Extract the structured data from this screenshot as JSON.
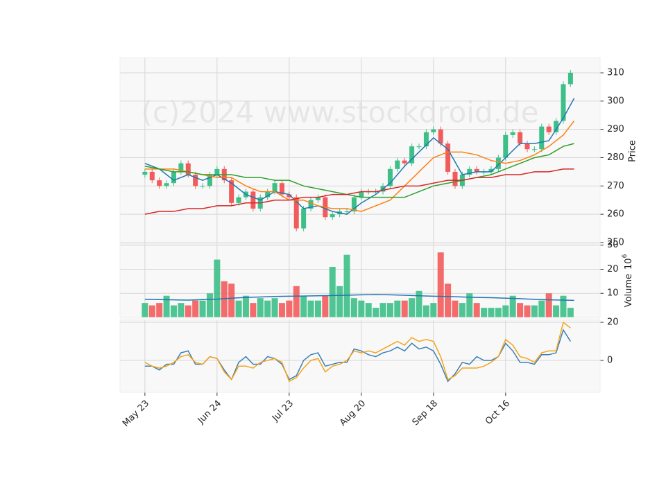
{
  "chart_data": [
    {
      "type": "candlestick",
      "watermark": "(c)2024 www.stockdroid.de",
      "ylabel": "Price",
      "up_color": "#3dbf88",
      "down_color": "#f25b5b",
      "x": [
        0,
        2,
        4,
        6,
        8,
        10,
        12,
        14,
        16,
        18,
        20,
        22,
        24,
        26,
        28,
        30,
        32,
        34,
        36,
        38,
        40,
        42,
        44,
        46,
        48,
        50,
        52,
        54,
        56,
        58,
        60,
        62,
        64,
        66,
        68,
        70,
        72,
        74,
        76,
        78,
        80,
        82,
        84,
        86,
        88,
        90,
        92,
        94,
        96,
        98,
        100,
        102,
        104,
        106,
        108,
        110,
        112,
        114,
        116,
        118
      ],
      "open": [
        274,
        275,
        272,
        270,
        271,
        275,
        278,
        274,
        270,
        270,
        274,
        276,
        272,
        264,
        266,
        268,
        262,
        266,
        268,
        271,
        267,
        266,
        255,
        262,
        265,
        266,
        259,
        260,
        261,
        261,
        266,
        268,
        268,
        268,
        270,
        276,
        279,
        278,
        284,
        284,
        289,
        290,
        285,
        275,
        270,
        274,
        276,
        275,
        275,
        276,
        280,
        288,
        289,
        285,
        283,
        283,
        291,
        289,
        293,
        306
      ],
      "high": [
        276,
        276,
        273,
        272,
        276,
        279,
        279,
        275,
        271,
        275,
        277,
        277,
        273,
        267,
        269,
        269,
        267,
        269,
        272,
        272,
        268,
        267,
        263,
        266,
        267,
        267,
        261,
        262,
        262,
        267,
        269,
        269,
        269,
        271,
        277,
        280,
        280,
        285,
        285,
        290,
        291,
        291,
        286,
        276,
        275,
        277,
        277,
        276,
        277,
        281,
        289,
        290,
        290,
        286,
        284,
        292,
        292,
        294,
        307,
        311
      ],
      "low": [
        273,
        271,
        269,
        269,
        270,
        274,
        273,
        269,
        269,
        269,
        273,
        271,
        263,
        263,
        265,
        261,
        261,
        265,
        267,
        266,
        265,
        254,
        254,
        261,
        264,
        258,
        258,
        259,
        260,
        260,
        265,
        267,
        267,
        267,
        269,
        275,
        277,
        277,
        283,
        283,
        288,
        284,
        274,
        269,
        269,
        273,
        274,
        274,
        274,
        275,
        279,
        287,
        284,
        282,
        282,
        282,
        288,
        288,
        292,
        305
      ],
      "close": [
        275,
        272,
        270,
        271,
        275,
        278,
        274,
        270,
        270,
        274,
        276,
        272,
        264,
        266,
        268,
        262,
        266,
        268,
        271,
        267,
        266,
        255,
        262,
        265,
        266,
        259,
        260,
        261,
        261,
        266,
        268,
        268,
        268,
        270,
        276,
        279,
        278,
        284,
        284,
        289,
        290,
        285,
        275,
        270,
        274,
        276,
        275,
        275,
        276,
        280,
        288,
        289,
        285,
        283,
        283,
        291,
        289,
        293,
        306,
        310
      ],
      "line_x": [
        0,
        4,
        8,
        12,
        16,
        20,
        24,
        28,
        32,
        36,
        40,
        44,
        48,
        52,
        56,
        60,
        64,
        68,
        72,
        76,
        80,
        84,
        88,
        92,
        96,
        100,
        104,
        108,
        112,
        116,
        119
      ],
      "overlays": [
        {
          "color": "#1f77b4",
          "values": [
            278,
            276,
            272,
            274,
            272,
            274,
            271,
            267,
            265,
            268,
            267,
            262,
            263,
            261,
            260,
            264,
            267,
            271,
            277,
            282,
            287,
            283,
            274,
            275,
            275,
            280,
            285,
            285,
            286,
            294,
            301
          ]
        },
        {
          "color": "#ff7f0e",
          "values": [
            276,
            276,
            276,
            275,
            274,
            273,
            273,
            270,
            268,
            268,
            265,
            265,
            263,
            262,
            262,
            261,
            263,
            265,
            270,
            275,
            280,
            282,
            282,
            281,
            279,
            278,
            279,
            281,
            284,
            288,
            293
          ]
        },
        {
          "color": "#2ca02c",
          "values": [
            277,
            276,
            275,
            275,
            274,
            274,
            274,
            273,
            273,
            272,
            272,
            270,
            269,
            268,
            267,
            266,
            266,
            266,
            266,
            268,
            270,
            271,
            272,
            273,
            274,
            276,
            278,
            280,
            281,
            284,
            285
          ]
        },
        {
          "color": "#d62728",
          "values": [
            260,
            261,
            261,
            262,
            262,
            263,
            263,
            264,
            264,
            265,
            265,
            266,
            266,
            267,
            267,
            268,
            268,
            269,
            270,
            270,
            271,
            272,
            272,
            273,
            273,
            274,
            274,
            275,
            275,
            276,
            276
          ]
        }
      ],
      "ylim": [
        249.5,
        315.4
      ],
      "yticks": [
        250,
        260,
        270,
        280,
        290,
        300,
        310
      ]
    },
    {
      "type": "bar",
      "ylabel": "Volume",
      "scale_base": "10",
      "scale_exponent": "6",
      "x": [
        0,
        2,
        4,
        6,
        8,
        10,
        12,
        14,
        16,
        18,
        20,
        22,
        24,
        26,
        28,
        30,
        32,
        34,
        36,
        38,
        40,
        42,
        44,
        46,
        48,
        50,
        52,
        54,
        56,
        58,
        60,
        62,
        64,
        66,
        68,
        70,
        72,
        74,
        76,
        78,
        80,
        82,
        84,
        86,
        88,
        90,
        92,
        94,
        96,
        98,
        100,
        102,
        104,
        106,
        108,
        110,
        112,
        114,
        116,
        118
      ],
      "values": [
        6,
        5,
        6,
        9,
        5,
        6,
        5,
        7,
        7,
        10,
        24,
        15,
        14,
        7,
        9,
        6,
        8,
        7,
        8,
        6,
        7,
        13,
        9,
        7,
        7,
        9,
        21,
        13,
        26,
        8,
        7,
        6,
        4,
        6,
        6,
        7,
        7,
        8,
        11,
        5,
        6,
        27,
        14,
        7,
        6,
        10,
        6,
        4,
        4,
        4,
        5,
        9,
        6,
        5,
        5,
        7,
        10,
        5,
        9,
        4
      ],
      "line_x": [
        0,
        4,
        8,
        12,
        16,
        20,
        24,
        28,
        32,
        36,
        40,
        44,
        48,
        52,
        56,
        60,
        64,
        68,
        72,
        76,
        80,
        84,
        88,
        92,
        96,
        100,
        104,
        108,
        112,
        116,
        119
      ],
      "overlays": [
        {
          "color": "#1f77b4",
          "values": [
            7.5,
            7.4,
            7.3,
            7.2,
            7.4,
            7.6,
            8,
            8.3,
            8.5,
            8.7,
            8.8,
            8.9,
            9,
            9.1,
            9.2,
            9.4,
            9.5,
            9.4,
            9.2,
            9,
            8.8,
            8.7,
            8.5,
            8.3,
            8.2,
            8,
            7.8,
            7.5,
            7.3,
            7.2,
            7.1
          ]
        }
      ],
      "ylim": [
        0,
        30.5
      ],
      "yticks": [
        10,
        20,
        30
      ]
    },
    {
      "type": "line",
      "x": [
        0,
        2,
        4,
        6,
        8,
        10,
        12,
        14,
        16,
        18,
        20,
        22,
        24,
        26,
        28,
        30,
        32,
        34,
        36,
        38,
        40,
        42,
        44,
        46,
        48,
        50,
        52,
        54,
        56,
        58,
        60,
        62,
        64,
        66,
        68,
        70,
        72,
        74,
        76,
        78,
        80,
        82,
        84,
        86,
        88,
        90,
        92,
        94,
        96,
        98,
        100,
        102,
        104,
        106,
        108,
        110,
        112,
        114,
        116,
        118
      ],
      "series": [
        {
          "color": "#3a7fb5",
          "values": [
            -3,
            -3,
            -5,
            -2,
            -2,
            4,
            5,
            -2,
            -2,
            2,
            1,
            -5,
            -10,
            -1,
            2,
            -2,
            -2,
            2,
            1,
            -2,
            -10,
            -8,
            0,
            3,
            4,
            -3,
            -2,
            -1,
            -1,
            6,
            5,
            3,
            2,
            4,
            5,
            7,
            5,
            9,
            6,
            7,
            5,
            -2,
            -11,
            -7,
            -1,
            -2,
            2,
            0,
            0,
            2,
            9,
            5,
            -1,
            -1,
            -2,
            3,
            3,
            4,
            16,
            10
          ]
        },
        {
          "color": "#f5a31a",
          "values": [
            -1,
            -3,
            -4,
            -3,
            -1,
            2,
            3,
            -1,
            -2,
            2,
            1,
            -6,
            -10,
            -3,
            -3,
            -4,
            -1,
            0,
            1,
            -1,
            -11,
            -9,
            -4,
            0,
            1,
            -6,
            -3,
            -2,
            0,
            5,
            4,
            5,
            4,
            6,
            8,
            10,
            8,
            12,
            10,
            11,
            10,
            2,
            -10,
            -8,
            -4,
            -4,
            -4,
            -3,
            -1,
            2,
            11,
            8,
            2,
            1,
            -1,
            4,
            5,
            5,
            20,
            17
          ]
        }
      ],
      "ylim": [
        -16.7,
        21.1
      ],
      "yticks": [
        0,
        20
      ],
      "xlim": [
        -6.9,
        126.2
      ],
      "xticks": [
        {
          "value": 0,
          "label": "May 23"
        },
        {
          "value": 20,
          "label": "Jun 24"
        },
        {
          "value": 40,
          "label": "Jul 23"
        },
        {
          "value": 60,
          "label": "Aug 20"
        },
        {
          "value": 80,
          "label": "Sep 18"
        },
        {
          "value": 100,
          "label": "Oct 16"
        }
      ]
    }
  ]
}
